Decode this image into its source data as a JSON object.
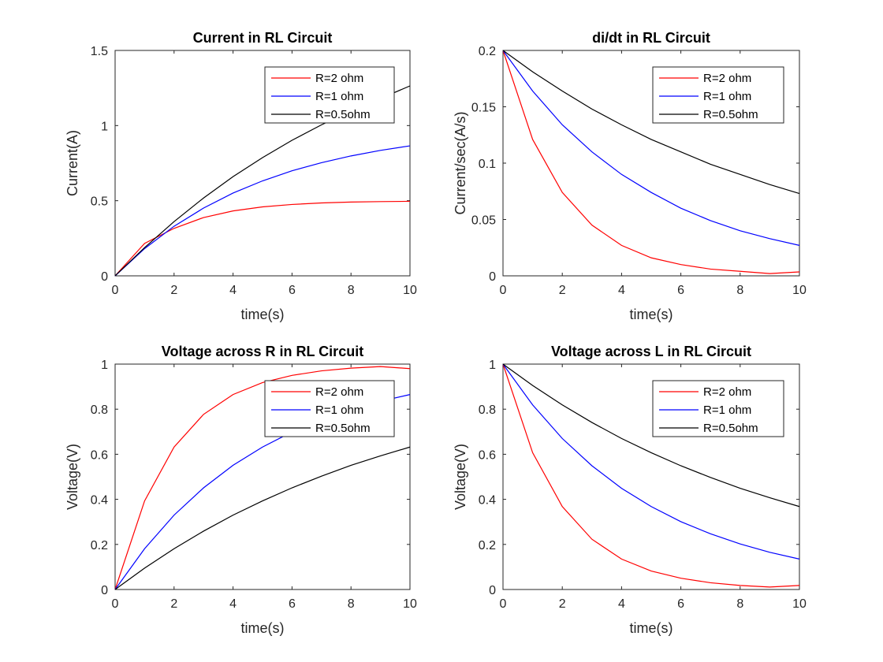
{
  "chart_data": [
    {
      "type": "line",
      "title": "Current in RL Circuit",
      "xlabel": "time(s)",
      "ylabel": "Current(A)",
      "xlim": [
        0,
        10
      ],
      "ylim": [
        0,
        1.5
      ],
      "xticks": [
        0,
        2,
        4,
        6,
        8,
        10
      ],
      "yticks": [
        0,
        0.5,
        1,
        1.5
      ],
      "ytick_labels": [
        "0",
        "0.5",
        "1",
        "1.5"
      ],
      "legend_position": "top-right",
      "x": [
        0,
        1,
        2,
        3,
        4,
        5,
        6,
        7,
        8,
        9,
        10
      ],
      "series": [
        {
          "name": "R=2 ohm",
          "color": "#ff0000",
          "values": [
            0,
            0.216,
            0.316,
            0.388,
            0.432,
            0.459,
            0.475,
            0.485,
            0.491,
            0.494,
            0.496
          ]
        },
        {
          "name": "R=1 ohm",
          "color": "#0000ff",
          "values": [
            0,
            0.181,
            0.33,
            0.451,
            0.551,
            0.632,
            0.699,
            0.753,
            0.798,
            0.835,
            0.865
          ]
        },
        {
          "name": "R=0.5ohm",
          "color": "#000000",
          "values": [
            0,
            0.188,
            0.361,
            0.518,
            0.66,
            0.787,
            0.902,
            1.005,
            1.097,
            1.18,
            1.264
          ]
        }
      ]
    },
    {
      "type": "line",
      "title": "di/dt in RL Circuit",
      "xlabel": "time(s)",
      "ylabel": "Current/sec(A/s)",
      "xlim": [
        0,
        10
      ],
      "ylim": [
        0,
        0.2
      ],
      "xticks": [
        0,
        2,
        4,
        6,
        8,
        10
      ],
      "yticks": [
        0,
        0.05,
        0.1,
        0.15,
        0.2
      ],
      "ytick_labels": [
        "0",
        "0.05",
        "0.1",
        "0.15",
        "0.2"
      ],
      "legend_position": "top-right",
      "x": [
        0,
        1,
        2,
        3,
        4,
        5,
        6,
        7,
        8,
        9,
        10
      ],
      "series": [
        {
          "name": "R=2 ohm",
          "color": "#ff0000",
          "values": [
            0.2,
            0.121,
            0.074,
            0.045,
            0.027,
            0.016,
            0.01,
            0.006,
            0.004,
            0.002,
            0.0035
          ]
        },
        {
          "name": "R=1 ohm",
          "color": "#0000ff",
          "values": [
            0.2,
            0.164,
            0.134,
            0.11,
            0.09,
            0.074,
            0.06,
            0.049,
            0.04,
            0.033,
            0.027
          ]
        },
        {
          "name": "R=0.5ohm",
          "color": "#000000",
          "values": [
            0.2,
            0.181,
            0.164,
            0.148,
            0.134,
            0.121,
            0.11,
            0.099,
            0.09,
            0.081,
            0.073
          ]
        }
      ]
    },
    {
      "type": "line",
      "title": "Voltage across R in RL Circuit",
      "xlabel": "time(s)",
      "ylabel": "Voltage(V)",
      "xlim": [
        0,
        10
      ],
      "ylim": [
        0,
        1
      ],
      "xticks": [
        0,
        2,
        4,
        6,
        8,
        10
      ],
      "yticks": [
        0,
        0.2,
        0.4,
        0.6,
        0.8,
        1
      ],
      "ytick_labels": [
        "0",
        "0.2",
        "0.4",
        "0.6",
        "0.8",
        "1"
      ],
      "legend_position": "top-right",
      "x": [
        0,
        1,
        2,
        3,
        4,
        5,
        6,
        7,
        8,
        9,
        10
      ],
      "series": [
        {
          "name": "R=2 ohm",
          "color": "#ff0000",
          "values": [
            0,
            0.393,
            0.632,
            0.777,
            0.865,
            0.918,
            0.95,
            0.97,
            0.982,
            0.989,
            0.98
          ]
        },
        {
          "name": "R=1 ohm",
          "color": "#0000ff",
          "values": [
            0,
            0.181,
            0.33,
            0.451,
            0.551,
            0.632,
            0.699,
            0.753,
            0.798,
            0.835,
            0.865
          ]
        },
        {
          "name": "R=0.5ohm",
          "color": "#000000",
          "values": [
            0,
            0.095,
            0.181,
            0.259,
            0.33,
            0.393,
            0.451,
            0.503,
            0.551,
            0.593,
            0.632
          ]
        }
      ]
    },
    {
      "type": "line",
      "title": "Voltage across L in RL Circuit",
      "xlabel": "time(s)",
      "ylabel": "Voltage(V)",
      "xlim": [
        0,
        10
      ],
      "ylim": [
        0,
        1
      ],
      "xticks": [
        0,
        2,
        4,
        6,
        8,
        10
      ],
      "yticks": [
        0,
        0.2,
        0.4,
        0.6,
        0.8,
        1
      ],
      "ytick_labels": [
        "0",
        "0.2",
        "0.4",
        "0.6",
        "0.8",
        "1"
      ],
      "legend_position": "top-right",
      "x": [
        0,
        1,
        2,
        3,
        4,
        5,
        6,
        7,
        8,
        9,
        10
      ],
      "series": [
        {
          "name": "R=2 ohm",
          "color": "#ff0000",
          "values": [
            1,
            0.607,
            0.368,
            0.223,
            0.135,
            0.082,
            0.05,
            0.03,
            0.018,
            0.011,
            0.018
          ]
        },
        {
          "name": "R=1 ohm",
          "color": "#0000ff",
          "values": [
            1,
            0.819,
            0.67,
            0.549,
            0.449,
            0.368,
            0.301,
            0.247,
            0.202,
            0.165,
            0.135
          ]
        },
        {
          "name": "R=0.5ohm",
          "color": "#000000",
          "values": [
            1,
            0.905,
            0.819,
            0.741,
            0.67,
            0.607,
            0.549,
            0.497,
            0.449,
            0.407,
            0.368
          ]
        }
      ]
    }
  ]
}
